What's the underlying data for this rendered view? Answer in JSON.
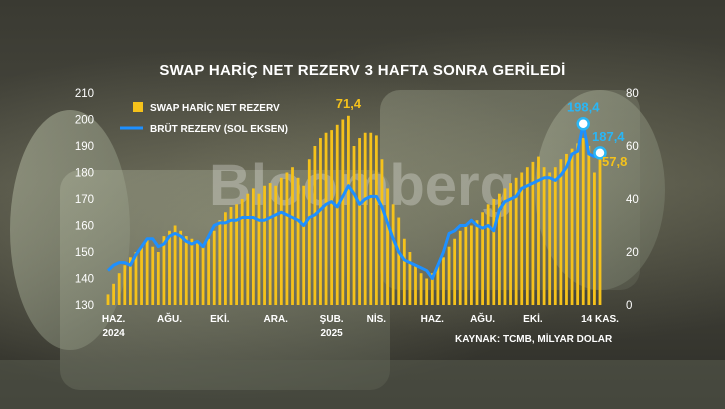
{
  "chart_data": {
    "type": "bar+line",
    "title": "SWAP HARİÇ NET REZERV 3 HAFTA SONRA GERİLEDİ",
    "source": "KAYNAK: TCMB, MİLYAR DOLAR",
    "watermark": "Bloomberg",
    "legend": {
      "placement": "top-left",
      "items": [
        "SWAP HARİÇ NET REZERV",
        "BRÜT REZERV (SOL EKSEN)"
      ]
    },
    "left_axis": {
      "series": "BRÜT REZERV (SOL EKSEN)",
      "range": [
        130,
        210
      ],
      "ticks": [
        "130",
        "140",
        "150",
        "160",
        "170",
        "180",
        "190",
        "200",
        "210"
      ]
    },
    "right_axis": {
      "series": "SWAP HARİÇ NET REZERV",
      "range": [
        0,
        80
      ],
      "ticks": [
        "0",
        "20",
        "40",
        "60",
        "80"
      ]
    },
    "x_ticks": [
      {
        "idx": 1,
        "label": "HAZ.",
        "year": "2024"
      },
      {
        "idx": 11,
        "label": "AĞU.",
        "year": ""
      },
      {
        "idx": 20,
        "label": "EKİ.",
        "year": ""
      },
      {
        "idx": 30,
        "label": "ARA.",
        "year": ""
      },
      {
        "idx": 40,
        "label": "ŞUB.",
        "year": "2025"
      },
      {
        "idx": 48,
        "label": "NİS.",
        "year": ""
      },
      {
        "idx": 58,
        "label": "HAZ.",
        "year": ""
      },
      {
        "idx": 67,
        "label": "AĞU.",
        "year": ""
      },
      {
        "idx": 76,
        "label": "EKİ.",
        "year": ""
      },
      {
        "idx": 88,
        "label": "14 KAS.",
        "year": ""
      }
    ],
    "annotations": [
      {
        "series": "net",
        "idx": 43,
        "label": "71,4",
        "color": "#f5c21b"
      },
      {
        "series": "gross",
        "idx": 85,
        "label": "198,4",
        "color": "#29b6f6"
      },
      {
        "series": "gross",
        "idx": 88,
        "label": "187,4",
        "color": "#29b6f6"
      },
      {
        "series": "net",
        "idx": 88,
        "label": "57,8",
        "color": "#f5c21b"
      }
    ],
    "colors": {
      "net": "#f5c21b",
      "gross": "#1e90ff",
      "text": "#ffffff"
    },
    "net_values": [
      4,
      8,
      12,
      15,
      18,
      20,
      22,
      25,
      22,
      20,
      26,
      28,
      30,
      28,
      26,
      25,
      24,
      22,
      25,
      28,
      32,
      35,
      37,
      38,
      40,
      42,
      44,
      42,
      45,
      46,
      45,
      48,
      50,
      52,
      48,
      45,
      55,
      60,
      63,
      65,
      66,
      68,
      70,
      71.4,
      60,
      63,
      65,
      65,
      64,
      55,
      44,
      38,
      33,
      25,
      20,
      15,
      12,
      10,
      12,
      15,
      18,
      22,
      25,
      28,
      30,
      30,
      32,
      35,
      38,
      40,
      42,
      44,
      46,
      48,
      50,
      52,
      54,
      56,
      52,
      50,
      52,
      55,
      57,
      59,
      61,
      63,
      60,
      50,
      57.8
    ],
    "gross_values": [
      143,
      145,
      146,
      146,
      145,
      149,
      152,
      155,
      155,
      152,
      153,
      156,
      157,
      156,
      154,
      153,
      154,
      152,
      156,
      160,
      161,
      161,
      162,
      162,
      163,
      163,
      163,
      162,
      162,
      163,
      164,
      165,
      164,
      163,
      162,
      160,
      163,
      164,
      166,
      168,
      169,
      167,
      171,
      175,
      172,
      168,
      170,
      171,
      171,
      167,
      161,
      155,
      150,
      147,
      146,
      145,
      144,
      143,
      140,
      145,
      150,
      157,
      158,
      160,
      160,
      162,
      160,
      159,
      160,
      158,
      166,
      169,
      170,
      171,
      174,
      175,
      176,
      177,
      178,
      178,
      177,
      179,
      182,
      187,
      188,
      198.4,
      187,
      186,
      187.4
    ]
  }
}
